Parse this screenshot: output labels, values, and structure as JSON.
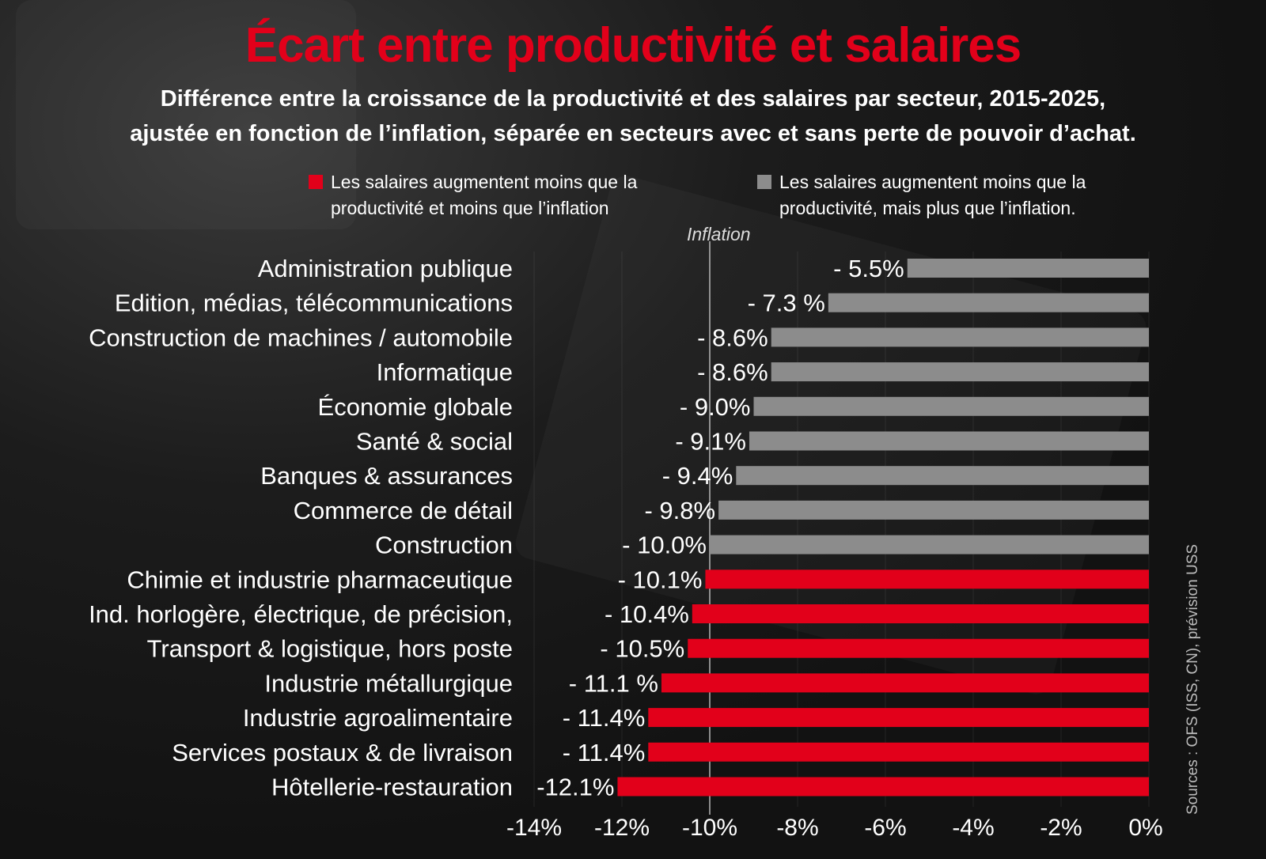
{
  "chart_data": {
    "type": "bar",
    "orientation": "horizontal",
    "title": "Écart entre productivité et salaires",
    "subtitle": [
      "Différence entre la croissance de la productivité et des salaires par secteur, 2015-2025,",
      "ajustée en fonction de l’inflation, séparée en secteurs avec et sans perte de pouvoir d’achat."
    ],
    "categories": [
      "Administration publique",
      "Edition, médias, télécommunications",
      "Construction de machines / automobile",
      "Informatique",
      "Économie globale",
      "Santé & social",
      "Banques & assurances",
      "Commerce de détail",
      "Construction",
      "Chimie et industrie pharmaceutique",
      "Ind. horlogère, électrique, de précision,",
      "Transport & logistique, hors poste",
      "Industrie métallurgique",
      "Industrie agroalimentaire",
      "Services postaux & de livraison",
      "Hôtellerie-restauration"
    ],
    "values": [
      -5.5,
      -7.3,
      -8.6,
      -8.6,
      -9.0,
      -9.1,
      -9.4,
      -9.8,
      -10.0,
      -10.1,
      -10.4,
      -10.5,
      -11.1,
      -11.4,
      -11.4,
      -12.1
    ],
    "data_labels": [
      "- 5.5%",
      "- 7.3 %",
      "- 8.6%",
      "- 8.6%",
      "- 9.0%",
      "- 9.1%",
      "- 9.4%",
      "- 9.8%",
      "- 10.0%",
      "- 10.1%",
      "- 10.4%",
      "- 10.5%",
      "- 11.1 %",
      "- 11.4%",
      "- 11.4%",
      "-12.1%"
    ],
    "groups": [
      "grey",
      "grey",
      "grey",
      "grey",
      "grey",
      "grey",
      "grey",
      "grey",
      "grey",
      "red",
      "red",
      "red",
      "red",
      "red",
      "red",
      "red"
    ],
    "legend": [
      {
        "key": "red",
        "color": "#e2001a",
        "label": [
          "Les salaires augmentent moins que la",
          "productivité et moins que l’inflation"
        ]
      },
      {
        "key": "grey",
        "color": "#8c8c8c",
        "label": [
          "Les salaires augmentent moins que la",
          "productivité, mais plus que l’inflation."
        ]
      }
    ],
    "xlim": [
      -14,
      0
    ],
    "xticks": [
      -14,
      -12,
      -10,
      -8,
      -6,
      -4,
      -2,
      0
    ],
    "xtick_labels": [
      "-14%",
      "-12%",
      "-10%",
      "-8%",
      "-6%",
      "-4%",
      "-2%",
      "0%"
    ],
    "reference_line": {
      "value": -10,
      "label": "Inflation"
    },
    "grid": true,
    "legend_position": "top",
    "source": "Sources : OFS (ISS, CN), prévision USS"
  }
}
